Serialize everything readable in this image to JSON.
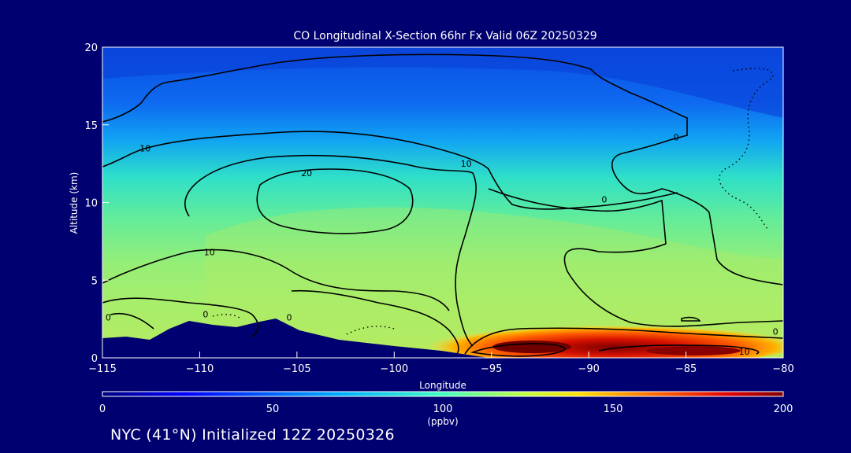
{
  "chart_data": {
    "type": "heatmap",
    "title": "CO Longitudinal X-Section 66hr  Fx Valid 06Z 20250329",
    "xlabel": "Longitude",
    "ylabel": "Altitude (km)",
    "xlim": [
      -115,
      -80
    ],
    "ylim": [
      0,
      20
    ],
    "x_ticks": [
      "−115",
      "−110",
      "−105",
      "−100",
      "−95",
      "−90",
      "−85",
      "−80"
    ],
    "y_ticks": [
      "0",
      "5",
      "10",
      "15",
      "20"
    ],
    "colorbar": {
      "label": "(ppbv)",
      "min": 0,
      "max": 200,
      "ticks": [
        "0",
        "50",
        "100",
        "150",
        "200"
      ]
    },
    "contour_labels": [
      {
        "text": "20",
        "x": -104.5,
        "y": 11.7
      },
      {
        "text": "10",
        "x": -112.8,
        "y": 13.3
      },
      {
        "text": "10",
        "x": -96.3,
        "y": 12.3
      },
      {
        "text": "10",
        "x": -109.5,
        "y": 6.6
      },
      {
        "text": "0",
        "x": -85.5,
        "y": 14.0
      },
      {
        "text": "0",
        "x": -89.2,
        "y": 10.0
      },
      {
        "text": "0",
        "x": -114.7,
        "y": 2.4
      },
      {
        "text": "0",
        "x": -109.7,
        "y": 2.6
      },
      {
        "text": "0",
        "x": -105.4,
        "y": 2.4
      },
      {
        "text": "0",
        "x": -80.4,
        "y": 1.5
      },
      {
        "text": "10",
        "x": -82.0,
        "y": 0.2
      }
    ],
    "grid": false
  },
  "footer": "NYC (41°N) Initialized 12Z 20250326"
}
